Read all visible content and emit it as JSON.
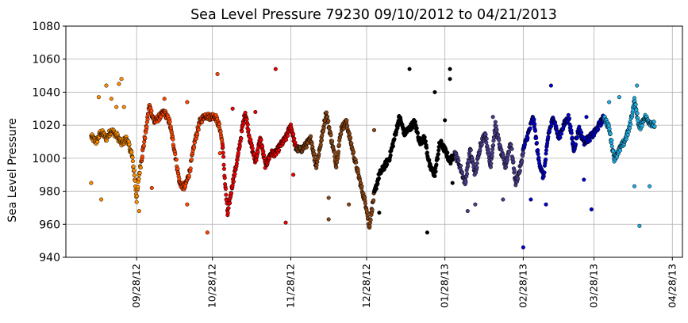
{
  "chart_data": {
    "type": "scatter",
    "title": "Sea Level Pressure 79230  09/10/2012 to 04/21/2013",
    "xlabel": "",
    "ylabel": "Sea Level Pressure",
    "ylim": [
      940,
      1080
    ],
    "y_ticks": [
      940,
      960,
      980,
      1000,
      1020,
      1040,
      1060,
      1080
    ],
    "xlim": [
      "2012-08-31",
      "2013-05-02"
    ],
    "x_ticks": [
      {
        "date": "2012-09-28",
        "label": "09/28/12"
      },
      {
        "date": "2012-10-28",
        "label": "10/28/12"
      },
      {
        "date": "2012-11-28",
        "label": "11/28/12"
      },
      {
        "date": "2012-12-28",
        "label": "12/28/12"
      },
      {
        "date": "2013-01-28",
        "label": "01/28/13"
      },
      {
        "date": "2013-02-28",
        "label": "02/28/13"
      },
      {
        "date": "2013-03-28",
        "label": "03/28/13"
      },
      {
        "date": "2013-04-28",
        "label": "04/28/13"
      }
    ],
    "grid": true,
    "legend": "none",
    "series": [
      {
        "color": "#ff8c00",
        "start": "2012-09-10",
        "end": "2012-09-30",
        "trace": [
          [
            "2012-09-10",
            1013
          ],
          [
            "2012-09-12",
            1010
          ],
          [
            "2012-09-14",
            1016
          ],
          [
            "2012-09-16",
            1012
          ],
          [
            "2012-09-18",
            1017
          ],
          [
            "2012-09-20",
            1014
          ],
          [
            "2012-09-22",
            1009
          ],
          [
            "2012-09-24",
            1012
          ],
          [
            "2012-09-26",
            1003
          ],
          [
            "2012-09-27",
            992
          ],
          [
            "2012-09-28",
            975
          ],
          [
            "2012-09-29",
            990
          ],
          [
            "2012-09-30",
            1000
          ]
        ],
        "outliers": [
          [
            "2012-09-10",
            985
          ],
          [
            "2012-09-13",
            1037
          ],
          [
            "2012-09-16",
            1044
          ],
          [
            "2012-09-18",
            1036
          ],
          [
            "2012-09-20",
            1031
          ],
          [
            "2012-09-21",
            1045
          ],
          [
            "2012-09-22",
            1048
          ],
          [
            "2012-09-23",
            1031
          ],
          [
            "2012-09-14",
            975
          ],
          [
            "2012-09-29",
            968
          ]
        ]
      },
      {
        "color": "#ff4500",
        "start": "2012-09-30",
        "end": "2012-11-01",
        "trace": [
          [
            "2012-09-30",
            1000
          ],
          [
            "2012-10-02",
            1020
          ],
          [
            "2012-10-03",
            1032
          ],
          [
            "2012-10-05",
            1022
          ],
          [
            "2012-10-07",
            1025
          ],
          [
            "2012-10-09",
            1028
          ],
          [
            "2012-10-11",
            1022
          ],
          [
            "2012-10-13",
            1005
          ],
          [
            "2012-10-15",
            985
          ],
          [
            "2012-10-17",
            982
          ],
          [
            "2012-10-19",
            992
          ],
          [
            "2012-10-21",
            1010
          ],
          [
            "2012-10-23",
            1022
          ],
          [
            "2012-10-25",
            1026
          ],
          [
            "2012-10-27",
            1025
          ],
          [
            "2012-10-29",
            1026
          ],
          [
            "2012-10-31",
            1018
          ],
          [
            "2012-11-01",
            1008
          ]
        ],
        "outliers": [
          [
            "2012-10-04",
            982
          ],
          [
            "2012-10-09",
            1036
          ],
          [
            "2012-10-18",
            1034
          ],
          [
            "2012-10-18",
            972
          ],
          [
            "2012-10-26",
            955
          ],
          [
            "2012-10-30",
            1051
          ],
          [
            "2012-10-31",
            1003
          ]
        ]
      },
      {
        "color": "#ee0000",
        "start": "2012-11-01",
        "end": "2012-11-30",
        "trace": [
          [
            "2012-11-01",
            1008
          ],
          [
            "2012-11-02",
            985
          ],
          [
            "2012-11-03",
            966
          ],
          [
            "2012-11-05",
            985
          ],
          [
            "2012-11-07",
            1000
          ],
          [
            "2012-11-09",
            1020
          ],
          [
            "2012-11-10",
            1028
          ],
          [
            "2012-11-12",
            1010
          ],
          [
            "2012-11-14",
            998
          ],
          [
            "2012-11-16",
            1012
          ],
          [
            "2012-11-18",
            995
          ],
          [
            "2012-11-20",
            1003
          ],
          [
            "2012-11-22",
            1003
          ],
          [
            "2012-11-24",
            1008
          ],
          [
            "2012-11-26",
            1012
          ],
          [
            "2012-11-28",
            1020
          ],
          [
            "2012-11-30",
            1006
          ]
        ],
        "outliers": [
          [
            "2012-11-05",
            1030
          ],
          [
            "2012-11-14",
            1028
          ],
          [
            "2012-11-22",
            1054
          ],
          [
            "2012-11-26",
            961
          ],
          [
            "2012-11-29",
            990
          ]
        ]
      },
      {
        "color": "#8b4513",
        "start": "2012-11-30",
        "end": "2012-12-31",
        "trace": [
          [
            "2012-11-30",
            1006
          ],
          [
            "2012-12-02",
            1005
          ],
          [
            "2012-12-04",
            1008
          ],
          [
            "2012-12-06",
            1012
          ],
          [
            "2012-12-08",
            995
          ],
          [
            "2012-12-10",
            1010
          ],
          [
            "2012-12-12",
            1028
          ],
          [
            "2012-12-14",
            1012
          ],
          [
            "2012-12-16",
            996
          ],
          [
            "2012-12-18",
            1018
          ],
          [
            "2012-12-20",
            1022
          ],
          [
            "2012-12-22",
            1008
          ],
          [
            "2012-12-24",
            995
          ],
          [
            "2012-12-26",
            982
          ],
          [
            "2012-12-28",
            970
          ],
          [
            "2012-12-29",
            958
          ],
          [
            "2012-12-31",
            978
          ]
        ],
        "outliers": [
          [
            "2012-12-13",
            963
          ],
          [
            "2012-12-13",
            976
          ],
          [
            "2012-12-21",
            972
          ],
          [
            "2012-12-31",
            1017
          ]
        ]
      },
      {
        "color": "#000000",
        "start": "2012-12-31",
        "end": "2013-02-01",
        "trace": [
          [
            "2012-12-31",
            978
          ],
          [
            "2013-01-02",
            990
          ],
          [
            "2013-01-04",
            995
          ],
          [
            "2013-01-06",
            1000
          ],
          [
            "2013-01-08",
            1012
          ],
          [
            "2013-01-10",
            1025
          ],
          [
            "2013-01-12",
            1015
          ],
          [
            "2013-01-14",
            1018
          ],
          [
            "2013-01-16",
            1022
          ],
          [
            "2013-01-18",
            1010
          ],
          [
            "2013-01-20",
            1012
          ],
          [
            "2013-01-22",
            995
          ],
          [
            "2013-01-24",
            990
          ],
          [
            "2013-01-26",
            1010
          ],
          [
            "2013-01-28",
            1005
          ],
          [
            "2013-01-30",
            998
          ],
          [
            "2013-02-01",
            1003
          ]
        ],
        "outliers": [
          [
            "2013-01-02",
            967
          ],
          [
            "2013-01-14",
            1054
          ],
          [
            "2013-01-21",
            955
          ],
          [
            "2013-01-24",
            1040
          ],
          [
            "2013-01-28",
            1023
          ],
          [
            "2013-01-30",
            1054
          ],
          [
            "2013-01-30",
            1048
          ],
          [
            "2013-01-31",
            985
          ]
        ]
      },
      {
        "color": "#483d8b",
        "start": "2013-02-01",
        "end": "2013-02-28",
        "trace": [
          [
            "2013-02-01",
            1003
          ],
          [
            "2013-02-03",
            995
          ],
          [
            "2013-02-05",
            985
          ],
          [
            "2013-02-07",
            1005
          ],
          [
            "2013-02-09",
            990
          ],
          [
            "2013-02-11",
            1008
          ],
          [
            "2013-02-13",
            1015
          ],
          [
            "2013-02-15",
            995
          ],
          [
            "2013-02-17",
            1020
          ],
          [
            "2013-02-19",
            1005
          ],
          [
            "2013-02-21",
            995
          ],
          [
            "2013-02-23",
            1010
          ],
          [
            "2013-02-25",
            985
          ],
          [
            "2013-02-27",
            995
          ],
          [
            "2013-02-28",
            1005
          ]
        ],
        "outliers": [
          [
            "2013-02-06",
            968
          ],
          [
            "2013-02-09",
            972
          ],
          [
            "2013-02-16",
            1025
          ],
          [
            "2013-02-20",
            975
          ]
        ]
      },
      {
        "color": "#0000cd",
        "start": "2013-02-28",
        "end": "2013-04-01",
        "trace": [
          [
            "2013-02-28",
            1005
          ],
          [
            "2013-03-02",
            1015
          ],
          [
            "2013-03-04",
            1025
          ],
          [
            "2013-03-06",
            1000
          ],
          [
            "2013-03-08",
            988
          ],
          [
            "2013-03-10",
            1015
          ],
          [
            "2013-03-12",
            1025
          ],
          [
            "2013-03-14",
            1012
          ],
          [
            "2013-03-16",
            1020
          ],
          [
            "2013-03-18",
            1025
          ],
          [
            "2013-03-20",
            1005
          ],
          [
            "2013-03-22",
            1018
          ],
          [
            "2013-03-24",
            1010
          ],
          [
            "2013-03-26",
            1012
          ],
          [
            "2013-03-28",
            1015
          ],
          [
            "2013-03-30",
            1020
          ],
          [
            "2013-04-01",
            1025
          ]
        ],
        "outliers": [
          [
            "2013-02-28",
            946
          ],
          [
            "2013-03-03",
            975
          ],
          [
            "2013-03-09",
            972
          ],
          [
            "2013-03-11",
            1044
          ],
          [
            "2013-03-24",
            987
          ],
          [
            "2013-03-27",
            969
          ],
          [
            "2013-03-25",
            1025
          ]
        ]
      },
      {
        "color": "#1eaee6",
        "start": "2013-04-01",
        "end": "2013-04-21",
        "trace": [
          [
            "2013-04-01",
            1025
          ],
          [
            "2013-04-03",
            1018
          ],
          [
            "2013-04-05",
            1000
          ],
          [
            "2013-04-07",
            1005
          ],
          [
            "2013-04-09",
            1010
          ],
          [
            "2013-04-11",
            1018
          ],
          [
            "2013-04-13",
            1035
          ],
          [
            "2013-04-15",
            1018
          ],
          [
            "2013-04-17",
            1025
          ],
          [
            "2013-04-19",
            1022
          ],
          [
            "2013-04-21",
            1020
          ]
        ],
        "outliers": [
          [
            "2013-04-03",
            1034
          ],
          [
            "2013-04-07",
            1037
          ],
          [
            "2013-04-14",
            1044
          ],
          [
            "2013-04-13",
            983
          ],
          [
            "2013-04-15",
            959
          ],
          [
            "2013-04-19",
            983
          ]
        ]
      }
    ]
  }
}
